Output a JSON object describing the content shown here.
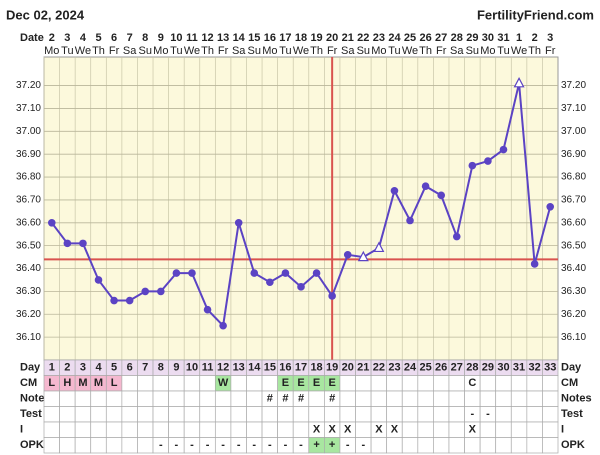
{
  "chart_data": {
    "type": "line",
    "title": "Dec 02, 2024",
    "brand": "FertilityFriend.com",
    "date_label": "Date",
    "categories": [
      2,
      3,
      4,
      5,
      6,
      7,
      8,
      9,
      10,
      11,
      12,
      13,
      14,
      15,
      16,
      17,
      18,
      19,
      20,
      21,
      22,
      23,
      24,
      25,
      26,
      27,
      28,
      29,
      30,
      31,
      1,
      2,
      3
    ],
    "weekdays": [
      "Mo",
      "Tu",
      "We",
      "Th",
      "Fr",
      "Sa",
      "Su",
      "Mo",
      "Tu",
      "We",
      "Th",
      "Fr",
      "Sa",
      "Su",
      "Mo",
      "Tu",
      "We",
      "Th",
      "Fr",
      "Sa",
      "Su",
      "Mo",
      "Tu",
      "We",
      "Th",
      "Fr",
      "Sa",
      "Su",
      "Mo",
      "Tu",
      "We",
      "Th",
      "Fr"
    ],
    "values": [
      36.6,
      36.51,
      36.51,
      36.35,
      36.26,
      36.26,
      36.3,
      36.3,
      36.38,
      36.38,
      36.22,
      36.15,
      36.6,
      36.38,
      36.34,
      36.38,
      36.32,
      36.38,
      36.28,
      36.46,
      36.45,
      36.49,
      36.74,
      36.61,
      36.76,
      36.72,
      36.54,
      36.85,
      36.87,
      36.92,
      37.21,
      36.42,
      36.67
    ],
    "markers": [
      "circle",
      "circle",
      "circle",
      "circle",
      "circle",
      "circle",
      "circle",
      "circle",
      "circle",
      "circle",
      "circle",
      "circle",
      "circle",
      "circle",
      "circle",
      "circle",
      "circle",
      "circle",
      "circle",
      "circle",
      "triangle",
      "triangle",
      "circle",
      "circle",
      "circle",
      "circle",
      "circle",
      "circle",
      "circle",
      "circle",
      "triangle",
      "circle",
      "circle"
    ],
    "color": "#5b43c4",
    "coverline": 36.44,
    "ovulation_day": 19,
    "line_color": "#d9534f",
    "ylim": [
      36.0,
      37.325
    ],
    "yticks": [
      {
        "value": 36.1,
        "label": "36.10"
      },
      {
        "value": 36.2,
        "label": "36.20"
      },
      {
        "value": 36.3,
        "label": "36.30"
      },
      {
        "value": 36.4,
        "label": "36.40"
      },
      {
        "value": 36.5,
        "label": "36.50"
      },
      {
        "value": 36.6,
        "label": "36.60"
      },
      {
        "value": 36.7,
        "label": "36.70"
      },
      {
        "value": 36.8,
        "label": "36.80"
      },
      {
        "value": 36.9,
        "label": "36.90"
      },
      {
        "value": 37.0,
        "label": "37.00"
      },
      {
        "value": 37.1,
        "label": "37.10"
      },
      {
        "value": 37.2,
        "label": "37.20"
      }
    ],
    "grid": true,
    "table": {
      "rows": [
        {
          "label": "Day",
          "cells": [
            1,
            2,
            3,
            4,
            5,
            6,
            7,
            8,
            9,
            10,
            11,
            12,
            13,
            14,
            15,
            16,
            17,
            18,
            19,
            20,
            21,
            22,
            23,
            24,
            25,
            26,
            27,
            28,
            29,
            30,
            31,
            32,
            33
          ],
          "fill": "#ecdcf0"
        },
        {
          "label": "CM",
          "cells": [
            "L",
            "H",
            "M",
            "M",
            "L",
            null,
            null,
            null,
            null,
            null,
            null,
            "W",
            null,
            null,
            null,
            "E",
            "E",
            "E",
            "E",
            null,
            null,
            null,
            null,
            null,
            null,
            null,
            null,
            "C",
            null,
            null,
            null,
            null,
            null
          ],
          "colors": [
            "#f5b8cf",
            "#f5b8cf",
            "#f5b8cf",
            "#f5b8cf",
            "#f5b8cf",
            null,
            null,
            null,
            null,
            null,
            null,
            "#a8e6a0",
            null,
            null,
            null,
            "#a8e6a0",
            "#a8e6a0",
            "#a8e6a0",
            "#a8e6a0",
            null,
            null,
            null,
            null,
            null,
            null,
            null,
            null,
            null,
            null,
            null,
            null,
            null,
            null
          ]
        },
        {
          "label": "Notes",
          "cells": [
            null,
            null,
            null,
            null,
            null,
            null,
            null,
            null,
            null,
            null,
            null,
            null,
            null,
            null,
            "#",
            "#",
            "#",
            null,
            "#",
            null,
            null,
            null,
            null,
            null,
            null,
            null,
            null,
            null,
            null,
            null,
            null,
            null,
            null
          ]
        },
        {
          "label": "Test",
          "cells": [
            null,
            null,
            null,
            null,
            null,
            null,
            null,
            null,
            null,
            null,
            null,
            null,
            null,
            null,
            null,
            null,
            null,
            null,
            null,
            null,
            null,
            null,
            null,
            null,
            null,
            null,
            null,
            "-",
            "-",
            null,
            null,
            null,
            null
          ]
        },
        {
          "label": "I",
          "cells": [
            null,
            null,
            null,
            null,
            null,
            null,
            null,
            null,
            null,
            null,
            null,
            null,
            null,
            null,
            null,
            null,
            null,
            "X",
            "X",
            "X",
            null,
            "X",
            "X",
            null,
            null,
            null,
            null,
            "X",
            null,
            null,
            null,
            null,
            null
          ]
        },
        {
          "label": "OPK",
          "cells": [
            null,
            null,
            null,
            null,
            null,
            null,
            null,
            "-",
            "-",
            "-",
            "-",
            "-",
            "-",
            "-",
            "-",
            "-",
            "-",
            "+",
            "+",
            "-",
            "-",
            null,
            null,
            null,
            null,
            null,
            null,
            null,
            null,
            null,
            null,
            null,
            null
          ],
          "colors": [
            null,
            null,
            null,
            null,
            null,
            null,
            null,
            null,
            null,
            null,
            null,
            null,
            null,
            null,
            null,
            null,
            null,
            "#a8e6a0",
            "#a8e6a0",
            null,
            null,
            null,
            null,
            null,
            null,
            null,
            null,
            null,
            null,
            null,
            null,
            null,
            null
          ]
        }
      ]
    }
  }
}
